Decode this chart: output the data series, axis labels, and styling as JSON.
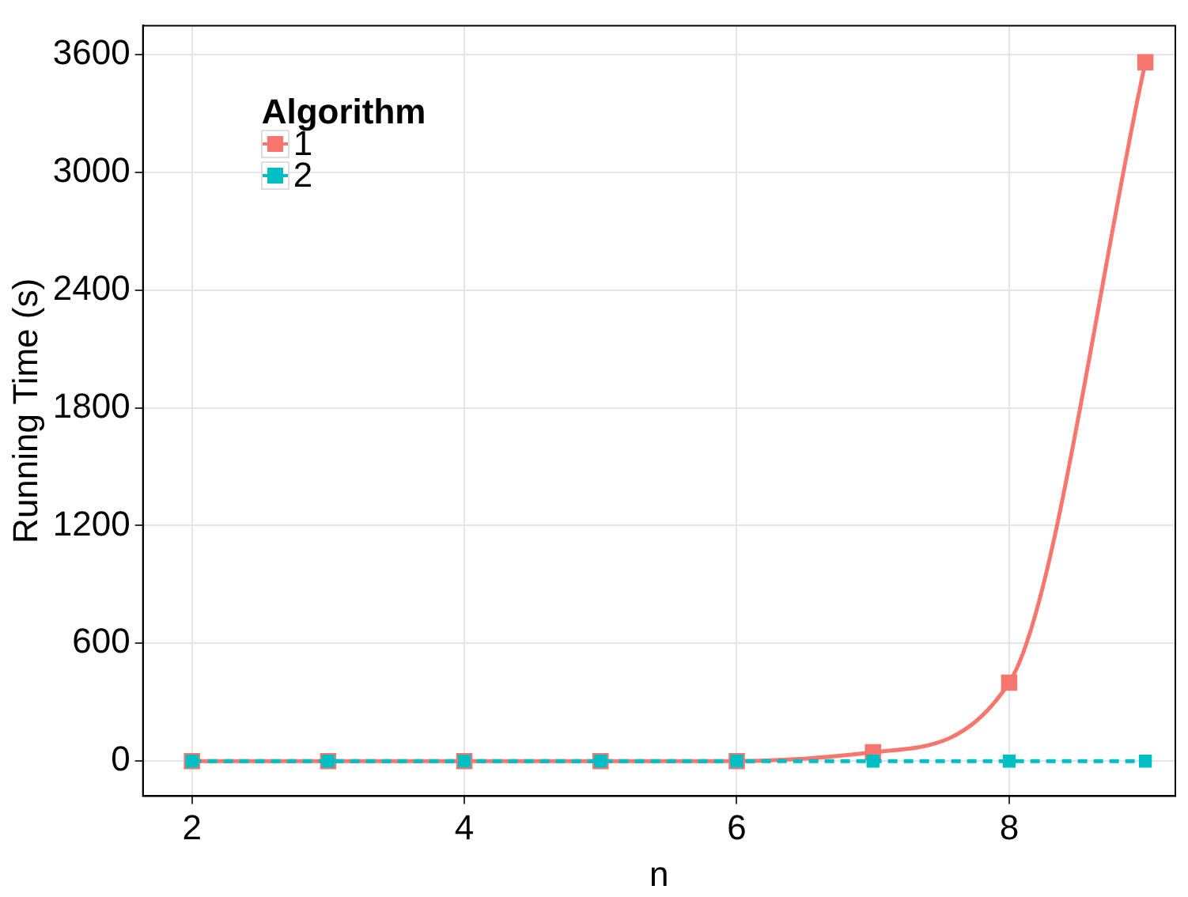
{
  "chart_data": {
    "type": "line",
    "xlabel": "n",
    "ylabel": "Running Time (s)",
    "legend_title": "Algorithm",
    "x": [
      2,
      3,
      4,
      5,
      6,
      7,
      8,
      9
    ],
    "series": [
      {
        "name": "1",
        "color": "#f8766d",
        "values": [
          0,
          0,
          0,
          0,
          0,
          45,
          400,
          3560
        ],
        "line_style": "solid"
      },
      {
        "name": "2",
        "color": "#00bfc4",
        "values": [
          0,
          0,
          0,
          0,
          0,
          0,
          0,
          0
        ],
        "line_style": "dashed"
      }
    ],
    "xlim": [
      1.64,
      9.22
    ],
    "xticks": [
      2,
      4,
      6,
      8
    ],
    "ylim": [
      -178,
      3747
    ],
    "yticks": [
      0,
      600,
      1200,
      1800,
      2400,
      3000,
      3600
    ],
    "grid": true,
    "legend": "top left",
    "marker": "square"
  }
}
